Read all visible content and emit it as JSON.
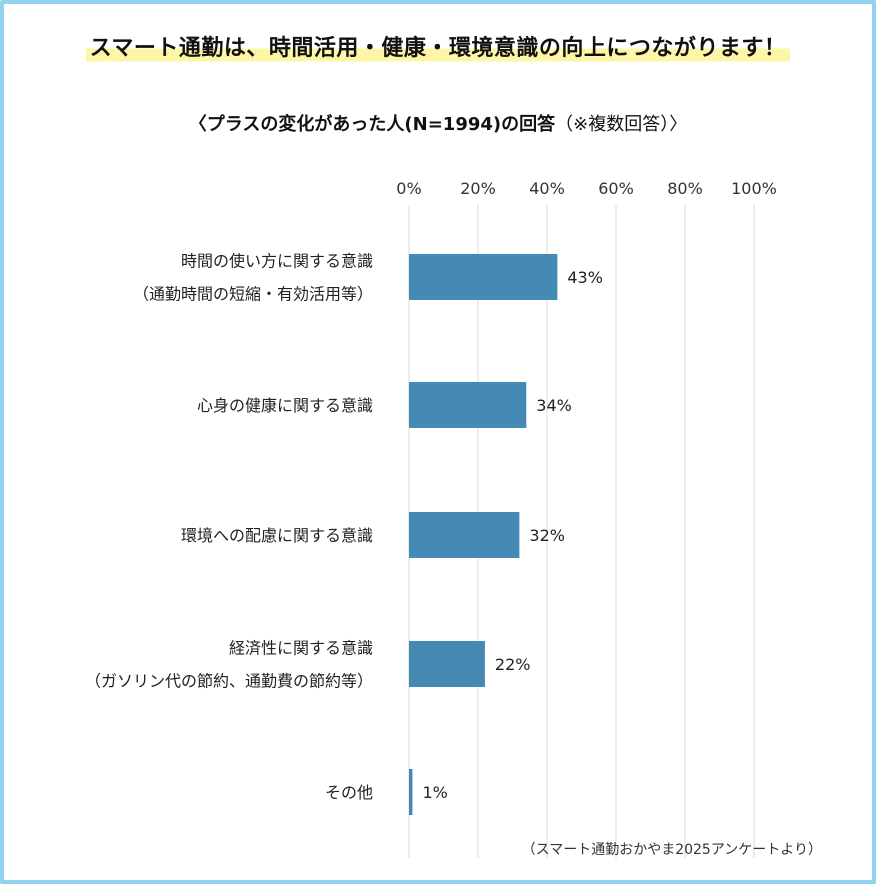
{
  "headline": "スマート通勤は、時間活用・健康・環境意識の向上につながります！",
  "subtitle_main": "〈プラスの変化があった人(N=1994)の回答",
  "subtitle_note": "（※複数回答）〉",
  "footnote": "（スマート通勤おかやま2025アンケートより）",
  "colors": {
    "bar": "#4589b5",
    "grid": "#d9d9d9",
    "border": "#8fd3ef",
    "highlight": "#fdf6a6"
  },
  "chart_data": {
    "type": "bar",
    "orientation": "horizontal",
    "axis_ticks": [
      "0%",
      "20%",
      "40%",
      "60%",
      "80%",
      "100%"
    ],
    "xlim": [
      0,
      100
    ],
    "grid": true,
    "categories": [
      {
        "lines": [
          "時間の使い方に関する意識",
          "（通勤時間の短縮・有効活用等）"
        ],
        "value": 43,
        "label": "43%"
      },
      {
        "lines": [
          "心身の健康に関する意識"
        ],
        "value": 34,
        "label": "34%"
      },
      {
        "lines": [
          "環境への配慮に関する意識"
        ],
        "value": 32,
        "label": "32%"
      },
      {
        "lines": [
          "経済性に関する意識",
          "（ガソリン代の節約、通勤費の節約等）"
        ],
        "value": 22,
        "label": "22%"
      },
      {
        "lines": [
          "その他"
        ],
        "value": 1,
        "label": "1%"
      }
    ]
  }
}
